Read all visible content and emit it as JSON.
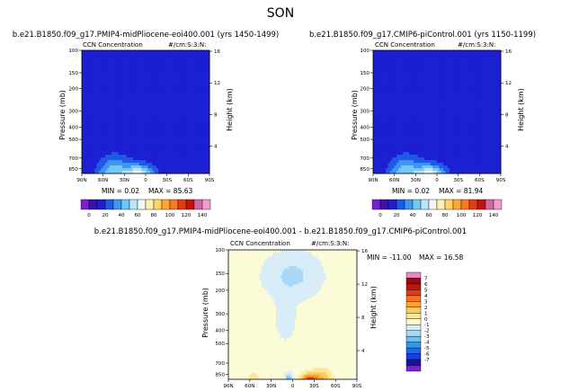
{
  "page_title": "SON",
  "colors": {
    "abs_levels": [
      "#7b1fd6",
      "#3f10a8",
      "#1d1fd2",
      "#1f5ae6",
      "#3f95f0",
      "#74c7f5",
      "#b7e7f7",
      "#f5f5f5",
      "#fdf2ad",
      "#fed46a",
      "#fea738",
      "#f77a22",
      "#e53a16",
      "#c2140d",
      "#d16aa3",
      "#f29ad0"
    ],
    "diff_levels": [
      "#7b1fd6",
      "#1515a0",
      "#1d3bd8",
      "#1f67e8",
      "#2f97f1",
      "#65c0f4",
      "#a8d8f5",
      "#d7ecf6",
      "#fcfbd8",
      "#fde890",
      "#fec95a",
      "#fea236",
      "#f7751f",
      "#e53a16",
      "#c2140d",
      "#8e1010",
      "#ee86c1"
    ]
  },
  "chart_data": [
    {
      "type": "contour",
      "title": "b.e21.B1850.f09_g17.PMIP4-midPliocene-eoi400.001 (yrs 1450-1499)",
      "subtitle": "CCN Concentration",
      "units": "#/cm:S:3:N:",
      "xlabel": "",
      "ylabel": "Pressure (mb)",
      "ylabel_right": "Height (km)",
      "x_ticks": [
        "90N",
        "60N",
        "30N",
        "0",
        "30S",
        "60S",
        "90S"
      ],
      "y_ticks": [
        "100",
        "150",
        "200",
        "300",
        "400",
        "500",
        "700",
        "850"
      ],
      "y_ticks_right": [
        "16",
        "12",
        "8",
        "4"
      ],
      "ylim": [
        100,
        925
      ],
      "min_label": "MIN = 0.02",
      "max_label": "MAX = 85.63",
      "min": 0.02,
      "max": 85.63,
      "colorbar_labels": [
        "0",
        "20",
        "40",
        "60",
        "80",
        "100",
        "120",
        "140"
      ],
      "field": {
        "core_lat": 10,
        "core_level_pressure": 925,
        "secondary_lat": 45,
        "top_pressure_center": 500
      }
    },
    {
      "type": "contour",
      "title": "b.e21.B1850.f09_g17.CMIP6-piControl.001 (yrs 1150-1199)",
      "subtitle": "CCN Concentration",
      "units": "#/cm:S:3:N:",
      "xlabel": "",
      "ylabel": "Pressure (mb)",
      "ylabel_right": "Height (km)",
      "x_ticks": [
        "90N",
        "60N",
        "30N",
        "0",
        "30S",
        "60S",
        "90S"
      ],
      "y_ticks": [
        "100",
        "150",
        "200",
        "300",
        "400",
        "500",
        "700",
        "850"
      ],
      "y_ticks_right": [
        "16",
        "12",
        "8",
        "4"
      ],
      "ylim": [
        100,
        925
      ],
      "min_label": "MIN = 0.02",
      "max_label": "MAX = 81.94",
      "min": 0.02,
      "max": 81.94,
      "colorbar_labels": [
        "0",
        "20",
        "40",
        "60",
        "80",
        "100",
        "120",
        "140"
      ],
      "field": {
        "core_lat": 10,
        "core_level_pressure": 925,
        "secondary_lat": 45,
        "top_pressure_center": 550
      }
    },
    {
      "type": "contour",
      "title": "b.e21.B1850.f09_g17.PMIP4-midPliocene-eoi400.001 - b.e21.B1850.f09_g17.CMIP6-piControl.001",
      "subtitle": "CCN Concentration",
      "units": "#/cm:S:3:N:",
      "xlabel": "",
      "ylabel": "Pressure (mb)",
      "ylabel_right": "Height (km)",
      "x_ticks": [
        "90N",
        "60N",
        "30N",
        "0",
        "30S",
        "60S",
        "90S"
      ],
      "y_ticks": [
        "100",
        "150",
        "200",
        "300",
        "400",
        "500",
        "700",
        "850"
      ],
      "y_ticks_right": [
        "16",
        "12",
        "8",
        "4"
      ],
      "ylim": [
        100,
        925
      ],
      "min_label": "MIN = -11.00",
      "max_label": "MAX = 16.58",
      "min": -11.0,
      "max": 16.58,
      "colorbar_labels": [
        "7",
        "6",
        "5",
        "4",
        "3",
        "2",
        "1",
        "0",
        "-1",
        "-2",
        "-3",
        "-4",
        "-5",
        "-6",
        "-7"
      ]
    }
  ]
}
